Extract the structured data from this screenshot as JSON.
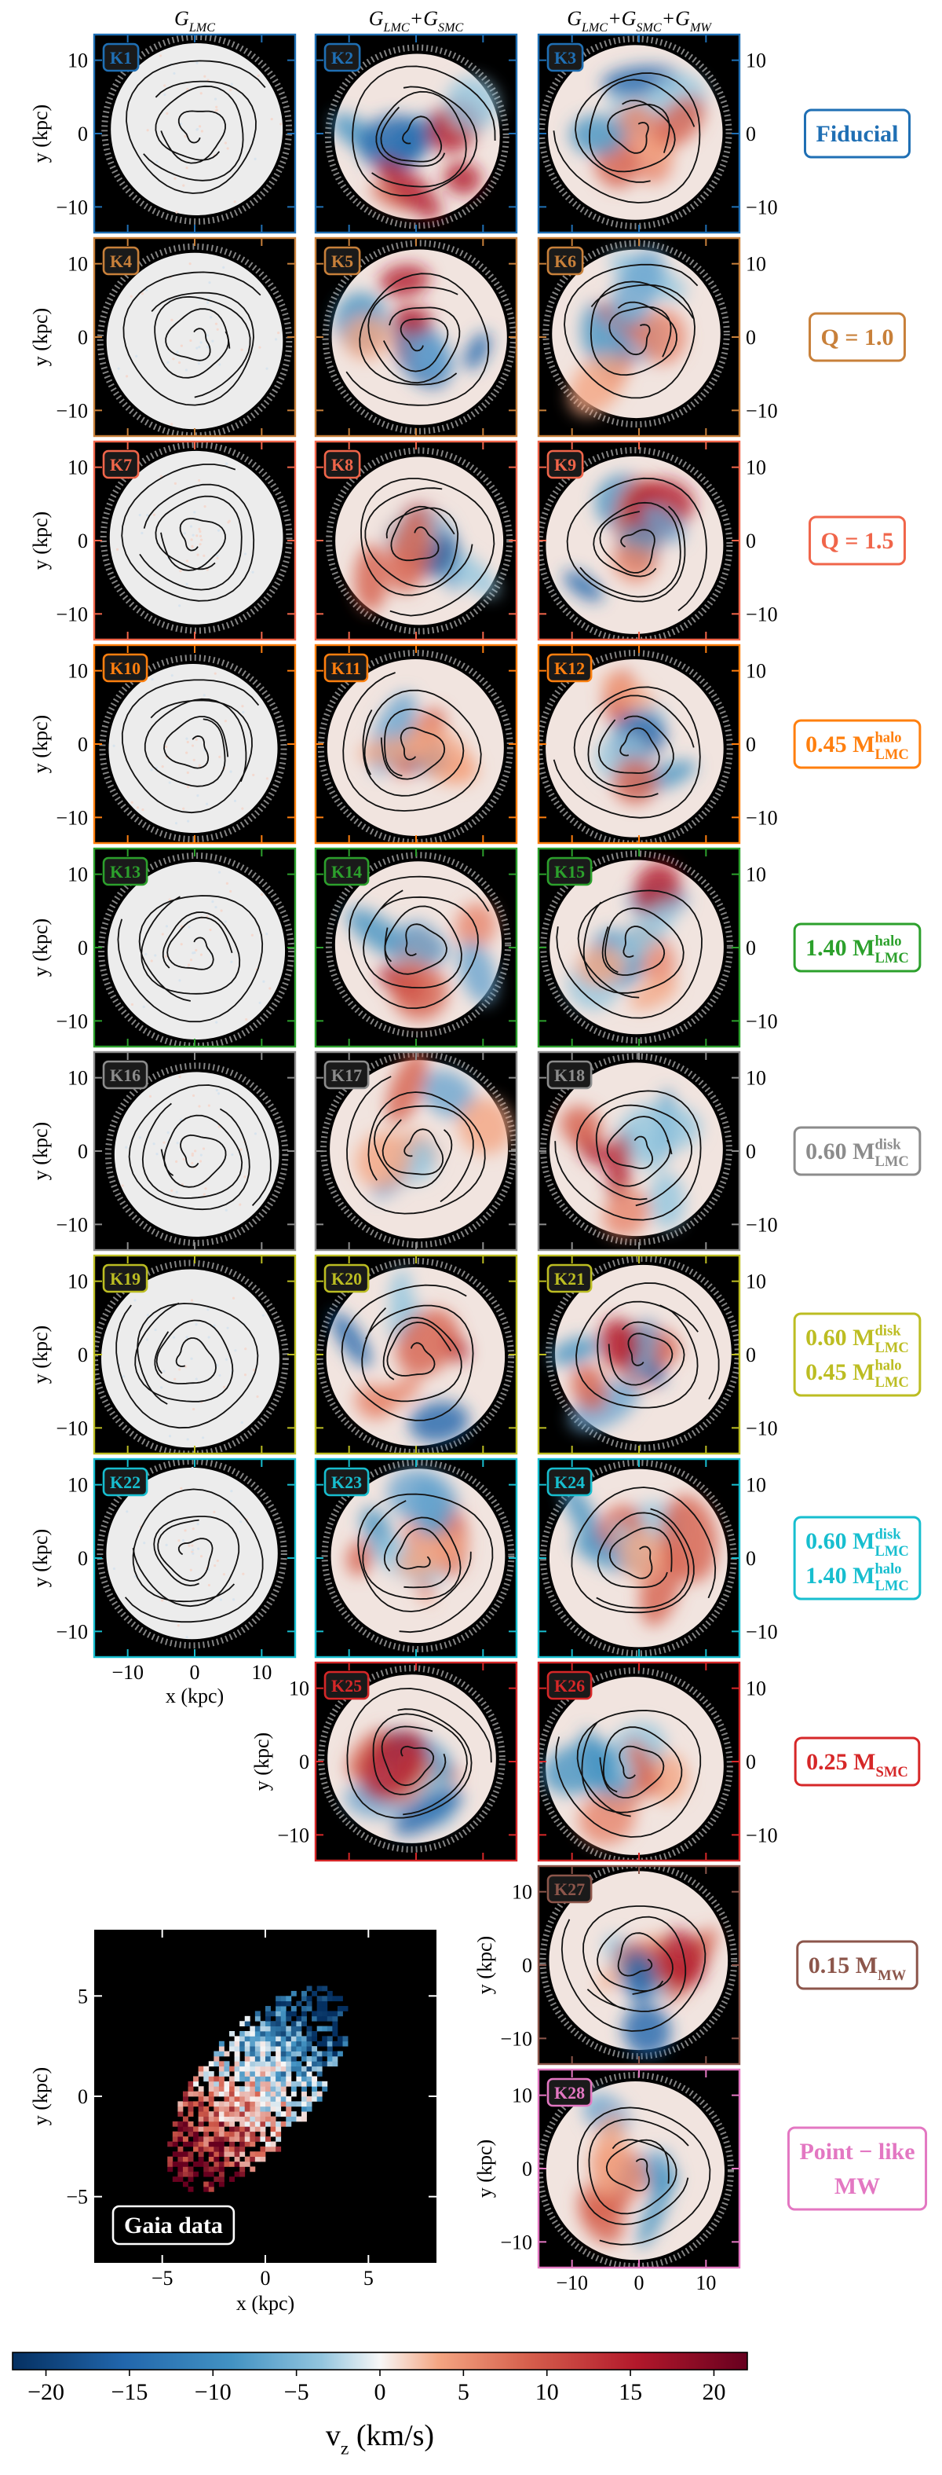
{
  "figure": {
    "column_titles": [
      [
        {
          "text": "G",
          "sub": "LMC"
        }
      ],
      [
        {
          "text": "G",
          "sub": "LMC"
        },
        {
          "text": "+G",
          "sub": "SMC"
        }
      ],
      [
        {
          "text": "G",
          "sub": "LMC"
        },
        {
          "text": "+G",
          "sub": "SMC"
        },
        {
          "text": "+G",
          "sub": "MW"
        }
      ]
    ],
    "rows": [
      {
        "color": "#1f6fb4",
        "label": [
          {
            "text": "Fiducial"
          }
        ],
        "panels": [
          "K1",
          "K2",
          "K3"
        ]
      },
      {
        "color": "#c8803a",
        "label": [
          {
            "text": "Q = 1.0"
          }
        ],
        "panels": [
          "K4",
          "K5",
          "K6"
        ]
      },
      {
        "color": "#f0654a",
        "label": [
          {
            "text": "Q = 1.5"
          }
        ],
        "panels": [
          "K7",
          "K8",
          "K9"
        ]
      },
      {
        "color": "#ff7f0e",
        "label": [
          {
            "text": "0.45 M",
            "sup": "halo",
            "sub": "LMC"
          }
        ],
        "panels": [
          "K10",
          "K11",
          "K12"
        ]
      },
      {
        "color": "#2ca02c",
        "label": [
          {
            "text": "1.40 M",
            "sup": "halo",
            "sub": "LMC"
          }
        ],
        "panels": [
          "K13",
          "K14",
          "K15"
        ]
      },
      {
        "color": "#8c8c8c",
        "label": [
          {
            "text": "0.60 M",
            "sup": "disk",
            "sub": "LMC"
          }
        ],
        "panels": [
          "K16",
          "K17",
          "K18"
        ]
      },
      {
        "color": "#bcbd22",
        "label": [
          {
            "text": "0.60 M",
            "sup": "disk",
            "sub": "LMC"
          },
          {
            "text": "0.45 M",
            "sup": "halo",
            "sub": "LMC"
          }
        ],
        "panels": [
          "K19",
          "K20",
          "K21"
        ]
      },
      {
        "color": "#17becf",
        "label": [
          {
            "text": "0.60 M",
            "sup": "disk",
            "sub": "LMC"
          },
          {
            "text": "1.40 M",
            "sup": "halo",
            "sub": "LMC"
          }
        ],
        "panels": [
          "K22",
          "K23",
          "K24"
        ]
      },
      {
        "color": "#d62728",
        "label": [
          {
            "text": "0.25 M",
            "sub": "SMC"
          }
        ],
        "panels": [
          "K25",
          "K26"
        ]
      },
      {
        "color": "#8c564b",
        "label": [
          {
            "text": "0.15 M",
            "sub": "MW"
          }
        ],
        "panels": [
          "K27"
        ]
      },
      {
        "color": "#e377c2",
        "label": [
          {
            "text": "Point − like"
          },
          {
            "text": "MW"
          }
        ],
        "panels": [
          "K28"
        ]
      }
    ],
    "xlabel": "x (kpc)",
    "ylabel": "y (kpc)",
    "xlim": [
      -15,
      15
    ],
    "ylim": [
      -13.5,
      13.5
    ],
    "xticks": [
      {
        "value": -10,
        "label": "−10"
      },
      0,
      10
    ],
    "yticks": [
      {
        "value": -10,
        "label": "−10"
      },
      0,
      10
    ],
    "inset": {
      "label": "Gaia data",
      "xlim": [
        -8.3,
        8.3
      ],
      "ylim": [
        -8.3,
        8.3
      ],
      "xticks": [
        {
          "value": -5,
          "label": "−5"
        },
        0,
        5
      ],
      "yticks": [
        {
          "value": -5,
          "label": "−5"
        },
        0,
        5
      ]
    },
    "colorbar": {
      "label": [
        {
          "text": "v",
          "sub": "z"
        },
        {
          "text": " (km/s)"
        }
      ],
      "clim": [
        -22,
        22
      ],
      "ticks": [
        {
          "value": -20,
          "label": "−20"
        },
        {
          "value": -15,
          "label": "−15"
        },
        {
          "value": -10,
          "label": "−10"
        },
        {
          "value": -5,
          "label": "−5"
        },
        0,
        5,
        10,
        15,
        20
      ]
    }
  }
}
